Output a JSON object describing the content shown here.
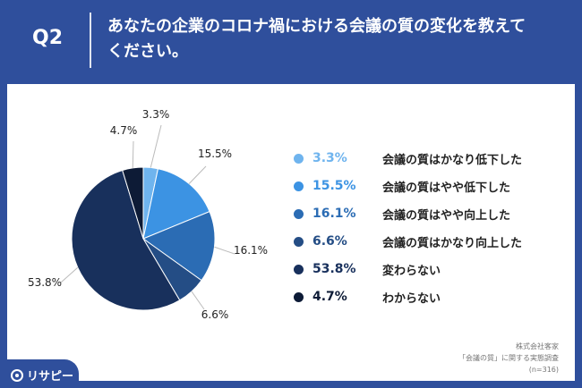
{
  "header": {
    "q_label": "Q2",
    "question": "あなたの企業のコロナ禍における会議の質の変化を教えてください。"
  },
  "chart_data": {
    "type": "pie",
    "series": [
      {
        "label": "会議の質はかなり低下した",
        "value": 3.3,
        "display": "3.3%",
        "color": "#6fb4ee"
      },
      {
        "label": "会議の質はやや低下した",
        "value": 15.5,
        "display": "15.5%",
        "color": "#3c93e3"
      },
      {
        "label": "会議の質はやや向上した",
        "value": 16.1,
        "display": "16.1%",
        "color": "#2b6cb4"
      },
      {
        "label": "会議の質はかなり向上した",
        "value": 6.6,
        "display": "6.6%",
        "color": "#244d85"
      },
      {
        "label": "変わらない",
        "value": 53.8,
        "display": "53.8%",
        "color": "#18305c"
      },
      {
        "label": "わからない",
        "value": 4.7,
        "display": "4.7%",
        "color": "#0d1b36"
      }
    ]
  },
  "footer": {
    "line1": "株式会社客家",
    "line2": "「会議の質」に関する実態調査",
    "line3": "(n=316)"
  },
  "logo": {
    "text": "リサピー",
    "icon": "lisapy-logo-icon"
  }
}
